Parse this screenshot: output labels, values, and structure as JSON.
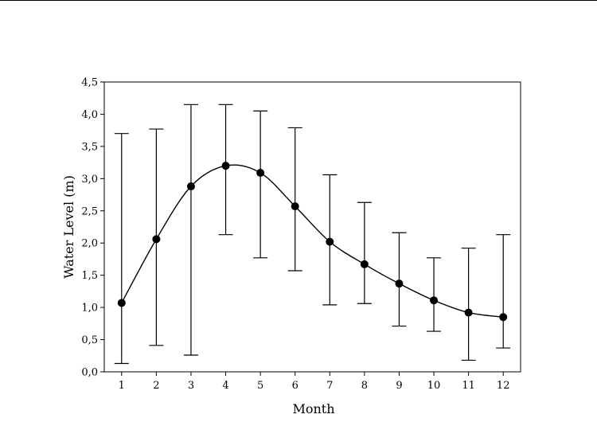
{
  "chart_data": {
    "type": "line",
    "title": "",
    "xlabel": "Month",
    "ylabel": "Water Level (m)",
    "categories": [
      "1",
      "2",
      "3",
      "4",
      "5",
      "6",
      "7",
      "8",
      "9",
      "10",
      "11",
      "12"
    ],
    "x": [
      1,
      2,
      3,
      4,
      5,
      6,
      7,
      8,
      9,
      10,
      11,
      12
    ],
    "series": [
      {
        "values": [
          1.07,
          2.06,
          2.88,
          3.2,
          3.09,
          2.57,
          2.02,
          1.67,
          1.37,
          1.11,
          0.92,
          0.85
        ],
        "error_upper": [
          3.7,
          3.77,
          4.15,
          4.15,
          4.05,
          3.79,
          3.06,
          2.63,
          2.16,
          1.77,
          1.92,
          2.13
        ],
        "error_lower": [
          0.13,
          0.41,
          0.26,
          2.13,
          1.77,
          1.57,
          1.04,
          1.06,
          0.71,
          0.63,
          0.18,
          0.37
        ]
      }
    ],
    "xlim": [
      0.5,
      12.5
    ],
    "ylim": [
      0,
      4.5
    ],
    "yticks": [
      0,
      0.5,
      1.0,
      1.5,
      2.0,
      2.5,
      3.0,
      3.5,
      4.0,
      4.5
    ],
    "ytick_labels": [
      "0,0",
      "0,5",
      "1,0",
      "1,5",
      "2,0",
      "2,5",
      "3,0",
      "3,5",
      "4,0",
      "4,5"
    ],
    "grid": false,
    "legend": "none",
    "colors": {
      "line": "#000000",
      "marker": "#000000",
      "errorbar": "#000000",
      "frame": "#000000"
    }
  }
}
